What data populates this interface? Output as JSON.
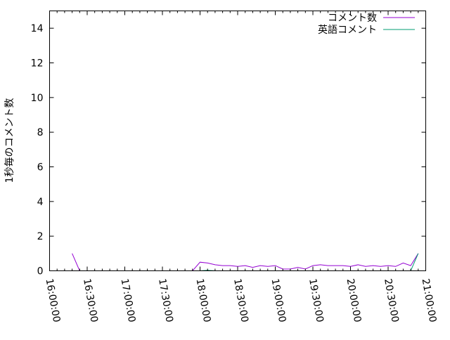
{
  "chart_data": {
    "type": "line",
    "title": "",
    "xlabel": "",
    "ylabel": "1秒毎のコメント数",
    "xlim": [
      "16:00:00",
      "21:00:00"
    ],
    "ylim": [
      0,
      15
    ],
    "x_ticks": [
      "16:00:00",
      "16:30:00",
      "17:00:00",
      "17:30:00",
      "18:00:00",
      "18:30:00",
      "19:00:00",
      "19:30:00",
      "20:00:00",
      "20:30:00",
      "21:00:00"
    ],
    "y_ticks": [
      "0",
      "2",
      "4",
      "6",
      "8",
      "10",
      "12",
      "14"
    ],
    "grid": false,
    "legend_position": "top-right",
    "x": [
      "16:18",
      "16:24",
      "16:30",
      "16:36",
      "16:42",
      "16:48",
      "16:54",
      "17:00",
      "17:06",
      "17:12",
      "17:18",
      "17:24",
      "17:30",
      "17:36",
      "17:42",
      "17:48",
      "17:54",
      "18:00",
      "18:06",
      "18:12",
      "18:18",
      "18:24",
      "18:30",
      "18:36",
      "18:42",
      "18:48",
      "18:54",
      "19:00",
      "19:06",
      "19:12",
      "19:18",
      "19:24",
      "19:30",
      "19:36",
      "19:42",
      "19:48",
      "19:54",
      "20:00",
      "20:06",
      "20:12",
      "20:18",
      "20:24",
      "20:30",
      "20:36",
      "20:42",
      "20:48",
      "20:54"
    ],
    "series": [
      {
        "name": "コメント数",
        "color": "#9400d3",
        "values": [
          1.0,
          0,
          0,
          0,
          0,
          0,
          0,
          0,
          0,
          0,
          0,
          0,
          0,
          0,
          0,
          0,
          0,
          0.5,
          0.45,
          0.35,
          0.3,
          0.3,
          0.25,
          0.3,
          0.2,
          0.3,
          0.25,
          0.3,
          0.1,
          0.1,
          0.2,
          0.1,
          0.3,
          0.35,
          0.3,
          0.3,
          0.3,
          0.25,
          0.35,
          0.25,
          0.3,
          0.25,
          0.3,
          0.25,
          0.45,
          0.3,
          1.0
        ]
      },
      {
        "name": "英語コメント",
        "color": "#009e73",
        "values": [
          0,
          0,
          0,
          0,
          0,
          0,
          0,
          0,
          0,
          0,
          0,
          0,
          0,
          0,
          0,
          0,
          0,
          0,
          0.03,
          0,
          0,
          0,
          0,
          0,
          0,
          0,
          0,
          0,
          0,
          0,
          0,
          0,
          0,
          0,
          0,
          0,
          0,
          0,
          0,
          0,
          0,
          0,
          0,
          0,
          0,
          0,
          1.0
        ]
      }
    ]
  }
}
